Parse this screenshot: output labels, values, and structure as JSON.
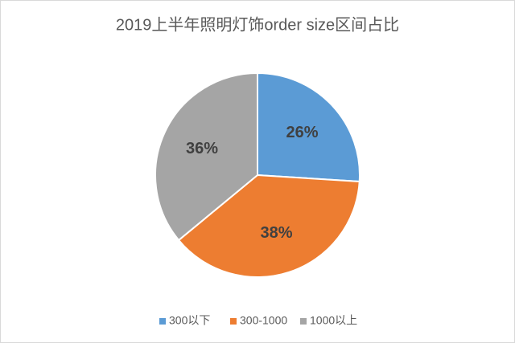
{
  "chart_data": {
    "type": "pie",
    "title": "2019上半年照明灯饰order size区间占比",
    "categories": [
      "300以下",
      "300-1000",
      "1000以上"
    ],
    "values": [
      26,
      38,
      36
    ],
    "value_labels": [
      "26%",
      "38%",
      "36%"
    ],
    "colors": [
      "#5b9bd5",
      "#ed7d31",
      "#a5a5a5"
    ],
    "legend": "bottom"
  }
}
